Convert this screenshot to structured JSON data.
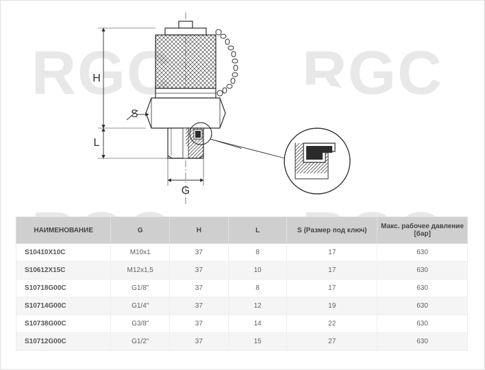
{
  "watermark_text": "RGC",
  "watermark_color": "#e8e8e8",
  "watermark_fontsize": 90,
  "diagram": {
    "type": "engineering-drawing",
    "description": "test point fitting with cap and chain",
    "dim_labels": {
      "H": "H",
      "S": "S",
      "L": "L",
      "G": "G"
    },
    "stroke": "#2b2b2b",
    "stroke_width": 1.2,
    "dim_stroke_width": 0.9,
    "hatch_spacing": 4,
    "arrow_size": 5,
    "fontsize": 14
  },
  "table": {
    "columns": [
      {
        "key": "name",
        "label": "НАИМЕНОВАНИЕ",
        "width": "21%",
        "align": "left"
      },
      {
        "key": "g",
        "label": "G",
        "width": "13%",
        "align": "center"
      },
      {
        "key": "h",
        "label": "H",
        "width": "13%",
        "align": "center"
      },
      {
        "key": "l",
        "label": "L",
        "width": "13%",
        "align": "center"
      },
      {
        "key": "s",
        "label": "S (Размер под ключ)",
        "width": "20%",
        "align": "center"
      },
      {
        "key": "p",
        "label": "Макс. рабочее давление [бар]",
        "width": "20%",
        "align": "center"
      }
    ],
    "rows": [
      {
        "name": "S10410X10C",
        "g": "M10x1",
        "h": "37",
        "l": "8",
        "s": "17",
        "p": "630"
      },
      {
        "name": "S10612X15C",
        "g": "M12x1,5",
        "h": "37",
        "l": "10",
        "s": "17",
        "p": "630"
      },
      {
        "name": "S10718G00C",
        "g": "G1/8\"",
        "h": "37",
        "l": "8",
        "s": "17",
        "p": "630"
      },
      {
        "name": "S10714G00C",
        "g": "G1/4\"",
        "h": "37",
        "l": "12",
        "s": "19",
        "p": "630"
      },
      {
        "name": "S10738G00C",
        "g": "G3/8\"",
        "h": "37",
        "l": "14",
        "s": "22",
        "p": "630"
      },
      {
        "name": "S10712G00C",
        "g": "G1/2\"",
        "h": "37",
        "l": "15",
        "s": "27",
        "p": "630"
      }
    ],
    "header_bg": "#cfcfcf",
    "header_color": "#444444",
    "row_even_bg": "#f5f5f5",
    "row_odd_bg": "#ffffff",
    "border_color": "#eeeeee",
    "text_color": "#606060",
    "fontsize": 10
  }
}
